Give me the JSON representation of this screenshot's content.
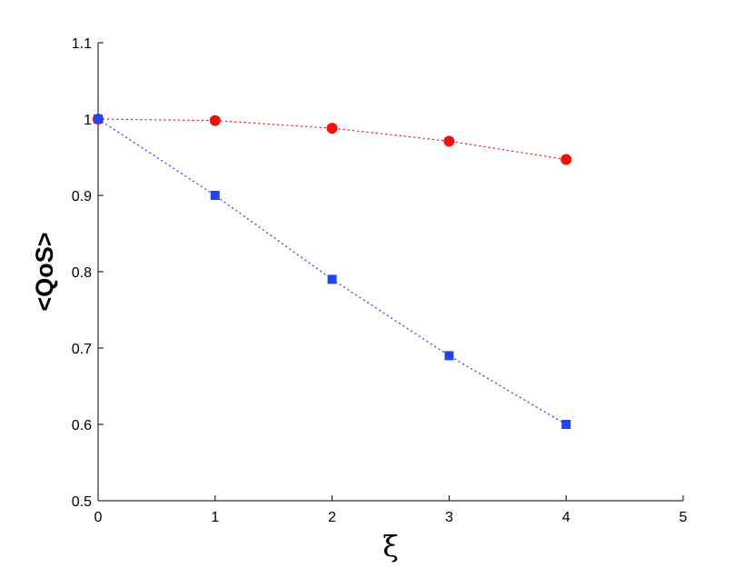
{
  "chart_data": {
    "type": "line",
    "title": "",
    "xlabel": "ξ",
    "ylabel": "<QoS>",
    "xlim": [
      0,
      5
    ],
    "ylim": [
      0.5,
      1.1
    ],
    "x_ticks": [
      "0",
      "1",
      "2",
      "3",
      "4",
      "5"
    ],
    "y_ticks": [
      "0.5",
      "0.6",
      "0.7",
      "0.8",
      "0.9",
      "1",
      "1.1"
    ],
    "grid": false,
    "series": [
      {
        "color": "#ee1111",
        "marker": "circle",
        "line_style": "dotted",
        "x": [
          0,
          1,
          2,
          3,
          4
        ],
        "y": [
          1.0,
          0.998,
          0.988,
          0.971,
          0.947
        ]
      },
      {
        "color": "#2244ee",
        "marker": "square",
        "line_style": "dotted",
        "x": [
          0,
          1,
          2,
          3,
          4
        ],
        "y": [
          1.0,
          0.9,
          0.79,
          0.69,
          0.6
        ]
      }
    ]
  }
}
